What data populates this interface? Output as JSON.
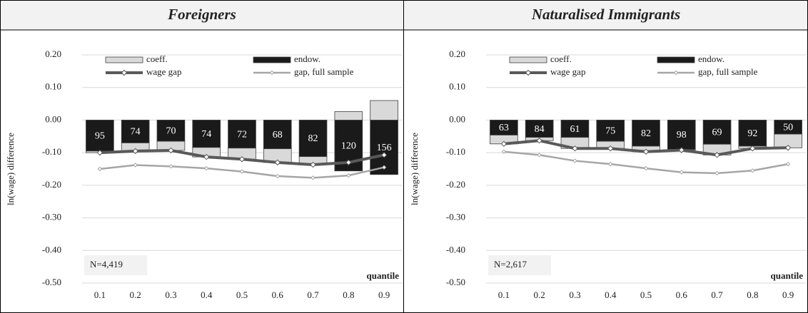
{
  "chart_data": [
    {
      "type": "stacked-bar-line",
      "title": "Foreigners",
      "y_label": "ln(wage) difference",
      "x_label": "quantile",
      "annotation": "N=4,419",
      "categories": [
        "0.1",
        "0.2",
        "0.3",
        "0.4",
        "0.5",
        "0.6",
        "0.7",
        "0.8",
        "0.9"
      ],
      "series": [
        {
          "name": "coeff.",
          "kind": "bar",
          "color": "#d9d9d9",
          "values": [
            -0.005,
            -0.025,
            -0.028,
            -0.029,
            -0.034,
            -0.042,
            -0.025,
            0.026,
            0.06
          ]
        },
        {
          "name": "endow.",
          "kind": "bar",
          "color": "#1a1a1a",
          "values": [
            -0.095,
            -0.07,
            -0.065,
            -0.084,
            -0.086,
            -0.088,
            -0.112,
            -0.156,
            -0.167
          ]
        },
        {
          "name": "wage gap",
          "kind": "line",
          "color": "#595959",
          "values": [
            -0.1,
            -0.095,
            -0.093,
            -0.113,
            -0.12,
            -0.13,
            -0.137,
            -0.13,
            -0.107
          ]
        },
        {
          "name": "gap, full sample",
          "kind": "line",
          "color": "#a6a6a6",
          "values": [
            -0.15,
            -0.138,
            -0.142,
            -0.148,
            -0.158,
            -0.172,
            -0.177,
            -0.17,
            -0.145
          ]
        }
      ],
      "endowment_share": [
        95,
        74,
        70,
        74,
        72,
        68,
        82,
        120,
        156
      ],
      "ylim": [
        -0.5,
        0.2
      ],
      "yticks": [
        {
          "value": 0.2,
          "label": "0.20"
        },
        {
          "value": 0.1,
          "label": "0.10"
        },
        {
          "value": 0,
          "label": "0.00"
        },
        {
          "value": -0.1,
          "label": "-0.10"
        },
        {
          "value": -0.2,
          "label": "-0.20"
        },
        {
          "value": -0.3,
          "label": "-0.30"
        },
        {
          "value": -0.4,
          "label": "-0.40"
        },
        {
          "value": -0.5,
          "label": "-0.50"
        }
      ],
      "grid": true
    },
    {
      "type": "stacked-bar-line",
      "title": "Naturalised Immigrants",
      "y_label": "ln(wage) difference",
      "x_label": "quantile",
      "annotation": "N=2,617",
      "categories": [
        "0.1",
        "0.2",
        "0.3",
        "0.4",
        "0.5",
        "0.6",
        "0.7",
        "0.8",
        "0.9"
      ],
      "series": [
        {
          "name": "coeff.",
          "kind": "bar",
          "color": "#d9d9d9",
          "values": [
            -0.027,
            -0.01,
            -0.034,
            -0.022,
            -0.017,
            -0.002,
            -0.033,
            -0.007,
            -0.042
          ]
        },
        {
          "name": "endow.",
          "kind": "bar",
          "color": "#1a1a1a",
          "values": [
            -0.046,
            -0.053,
            -0.053,
            -0.065,
            -0.08,
            -0.09,
            -0.074,
            -0.08,
            -0.043
          ]
        },
        {
          "name": "wage gap",
          "kind": "line",
          "color": "#595959",
          "values": [
            -0.073,
            -0.063,
            -0.087,
            -0.087,
            -0.097,
            -0.092,
            -0.107,
            -0.087,
            -0.085
          ]
        },
        {
          "name": "gap, full sample",
          "kind": "line",
          "color": "#a6a6a6",
          "values": [
            -0.097,
            -0.107,
            -0.125,
            -0.135,
            -0.148,
            -0.16,
            -0.163,
            -0.155,
            -0.135
          ]
        }
      ],
      "endowment_share": [
        63,
        84,
        61,
        75,
        82,
        98,
        69,
        92,
        50
      ],
      "ylim": [
        -0.5,
        0.2
      ],
      "yticks": [
        {
          "value": 0.2,
          "label": "0.20"
        },
        {
          "value": 0.1,
          "label": "0.10"
        },
        {
          "value": 0,
          "label": "0.00"
        },
        {
          "value": -0.1,
          "label": "-0.10"
        },
        {
          "value": -0.2,
          "label": "-0.20"
        },
        {
          "value": -0.3,
          "label": "-0.30"
        },
        {
          "value": -0.4,
          "label": "-0.40"
        },
        {
          "value": -0.5,
          "label": "-0.50"
        }
      ],
      "grid": true
    }
  ]
}
